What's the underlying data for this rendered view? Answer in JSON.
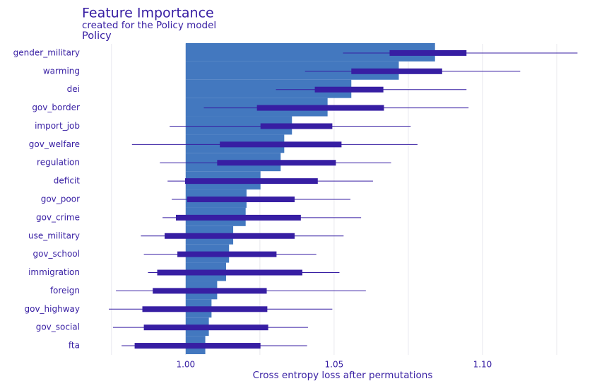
{
  "chart_data": {
    "type": "bar",
    "orientation": "horizontal",
    "title": "Feature Importance",
    "subtitle": "created for the Policy model",
    "panel_label": "Policy",
    "xlabel": "Cross entropy loss after permutations",
    "categories": [
      "gender_military",
      "warming",
      "dei",
      "gov_border",
      "import_job",
      "gov_welfare",
      "regulation",
      "deficit",
      "gov_poor",
      "gov_crime",
      "use_military",
      "gov_school",
      "immigration",
      "foreign",
      "gov_highway",
      "gov_social",
      "fta"
    ],
    "baseline": 1.0,
    "values": [
      1.084,
      1.0718,
      1.0558,
      1.0478,
      1.0358,
      1.0332,
      1.032,
      1.0252,
      1.0205,
      1.0202,
      1.016,
      1.0146,
      1.0136,
      1.0106,
      1.0087,
      1.0078,
      1.0066
    ],
    "boxplot": {
      "min": [
        1.053,
        1.0402,
        1.0304,
        1.0061,
        0.9946,
        0.9819,
        0.9913,
        0.9939,
        0.9953,
        0.9922,
        0.9849,
        0.9859,
        0.9873,
        0.9765,
        0.9741,
        0.9755,
        0.9784
      ],
      "q1": [
        1.0687,
        1.0558,
        1.0435,
        1.024,
        1.0252,
        1.0115,
        1.0106,
        0.9998,
        1.0005,
        0.9967,
        0.9929,
        0.9972,
        0.9904,
        0.9889,
        0.9854,
        0.9859,
        0.9828
      ],
      "q3": [
        1.0946,
        1.0864,
        1.0666,
        1.0668,
        1.0494,
        1.0525,
        1.0506,
        1.0445,
        1.0367,
        1.0388,
        1.0367,
        1.0306,
        1.0393,
        1.0273,
        1.0275,
        1.0278,
        1.0252
      ],
      "max": [
        1.132,
        1.1127,
        1.0946,
        1.0953,
        1.0758,
        1.0781,
        1.0692,
        1.0631,
        1.0555,
        1.0591,
        1.0532,
        1.044,
        1.0518,
        1.0607,
        1.0494,
        1.0412,
        1.0409
      ]
    },
    "color": "#4378bf",
    "box_color": "#371ea3",
    "xlim": [
      0.966,
      1.135
    ],
    "xticks": [
      {
        "value": 1.0,
        "label": "1.00"
      },
      {
        "value": 1.05,
        "label": "1.05"
      },
      {
        "value": 1.1,
        "label": "1.10"
      }
    ],
    "minor_xticks": [
      0.975,
      1.025,
      1.075,
      1.125
    ],
    "grid": true
  }
}
